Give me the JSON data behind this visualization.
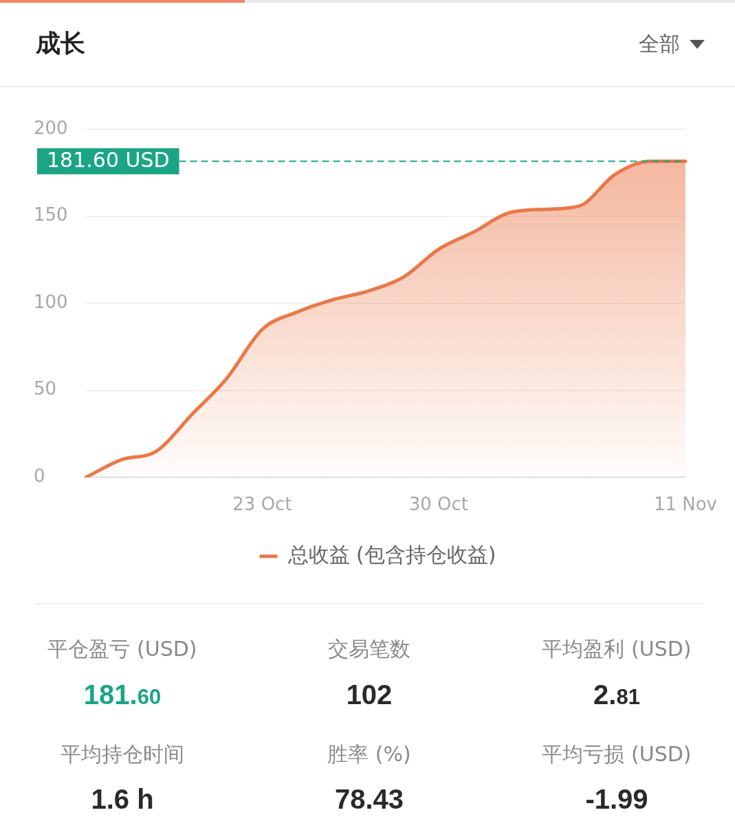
{
  "chart_data": [
    {
      "type": "area",
      "title": "成长",
      "annotations": [
        "全部"
      ],
      "categories": [
        null,
        null,
        null,
        null,
        null,
        "23 Oct",
        null,
        null,
        null,
        null,
        "30 Oct",
        null,
        null,
        null,
        null,
        null,
        null,
        "11 Nov"
      ],
      "series": [
        {
          "name": "总收益 (包含持仓收益)",
          "color": "#ea7848",
          "values": [
            0,
            10,
            15,
            36,
            57,
            85,
            95,
            102,
            107,
            115,
            131,
            141,
            152,
            154,
            156,
            174,
            181.6,
            181.6
          ]
        }
      ],
      "ylim": [
        0,
        200
      ],
      "yticks": [
        0,
        50,
        100,
        150,
        200
      ],
      "grid": "y",
      "legend": "bottom",
      "ref_lines": [
        {
          "axis": "y",
          "value": 181.6,
          "label": "181.60 USD",
          "color": "#1ba585",
          "line_style": "dashed"
        }
      ]
    },
    {
      "type": "other",
      "annotations": [
        "平仓盈亏 (USD)",
        "181.60",
        "交易笔数",
        "102",
        "平均盈利 (USD)",
        "2.81",
        "平均持仓时间",
        "1.6 h",
        "胜率 (%)",
        "78.43",
        "平均亏损 (USD)",
        "-1.99"
      ]
    }
  ]
}
